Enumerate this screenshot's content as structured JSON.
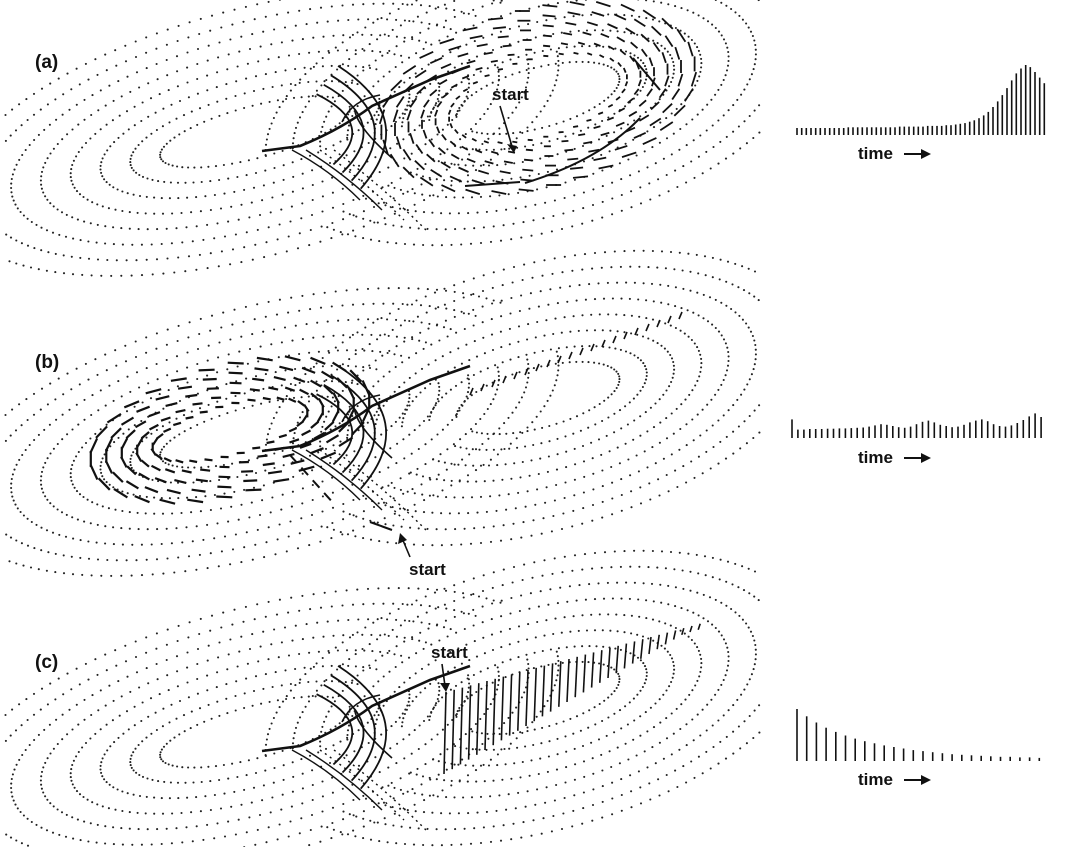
{
  "panels": [
    {
      "id": "a",
      "label": "(a)",
      "start_label": "start",
      "time_label": "time",
      "pulse_amplitudes": [
        0.1,
        0.1,
        0.1,
        0.1,
        0.1,
        0.1,
        0.1,
        0.1,
        0.1,
        0.1,
        0.1,
        0.11,
        0.11,
        0.11,
        0.11,
        0.11,
        0.11,
        0.11,
        0.11,
        0.11,
        0.11,
        0.11,
        0.12,
        0.12,
        0.12,
        0.12,
        0.12,
        0.12,
        0.13,
        0.13,
        0.13,
        0.13,
        0.14,
        0.14,
        0.15,
        0.16,
        0.17,
        0.19,
        0.21,
        0.24,
        0.28,
        0.33,
        0.4,
        0.48,
        0.57,
        0.67,
        0.78,
        0.88,
        0.95,
        1.0,
        0.97,
        0.9,
        0.82,
        0.74
      ]
    },
    {
      "id": "b",
      "label": "(b)",
      "start_label": "start",
      "time_label": "time",
      "pulse_amplitudes": [
        0.62,
        0.28,
        0.28,
        0.3,
        0.3,
        0.3,
        0.31,
        0.31,
        0.32,
        0.32,
        0.33,
        0.34,
        0.35,
        0.38,
        0.42,
        0.46,
        0.44,
        0.4,
        0.36,
        0.34,
        0.38,
        0.46,
        0.54,
        0.58,
        0.52,
        0.44,
        0.4,
        0.36,
        0.38,
        0.44,
        0.52,
        0.58,
        0.62,
        0.56,
        0.46,
        0.4,
        0.38,
        0.42,
        0.5,
        0.6,
        0.72,
        0.82,
        0.7
      ]
    },
    {
      "id": "c",
      "label": "(c)",
      "start_label": "start",
      "time_label": "time",
      "pulse_amplitudes": [
        1.0,
        0.86,
        0.74,
        0.64,
        0.56,
        0.49,
        0.43,
        0.38,
        0.34,
        0.3,
        0.27,
        0.24,
        0.21,
        0.19,
        0.17,
        0.15,
        0.13,
        0.12,
        0.11,
        0.1,
        0.09,
        0.08,
        0.08,
        0.07,
        0.07,
        0.06
      ]
    }
  ]
}
